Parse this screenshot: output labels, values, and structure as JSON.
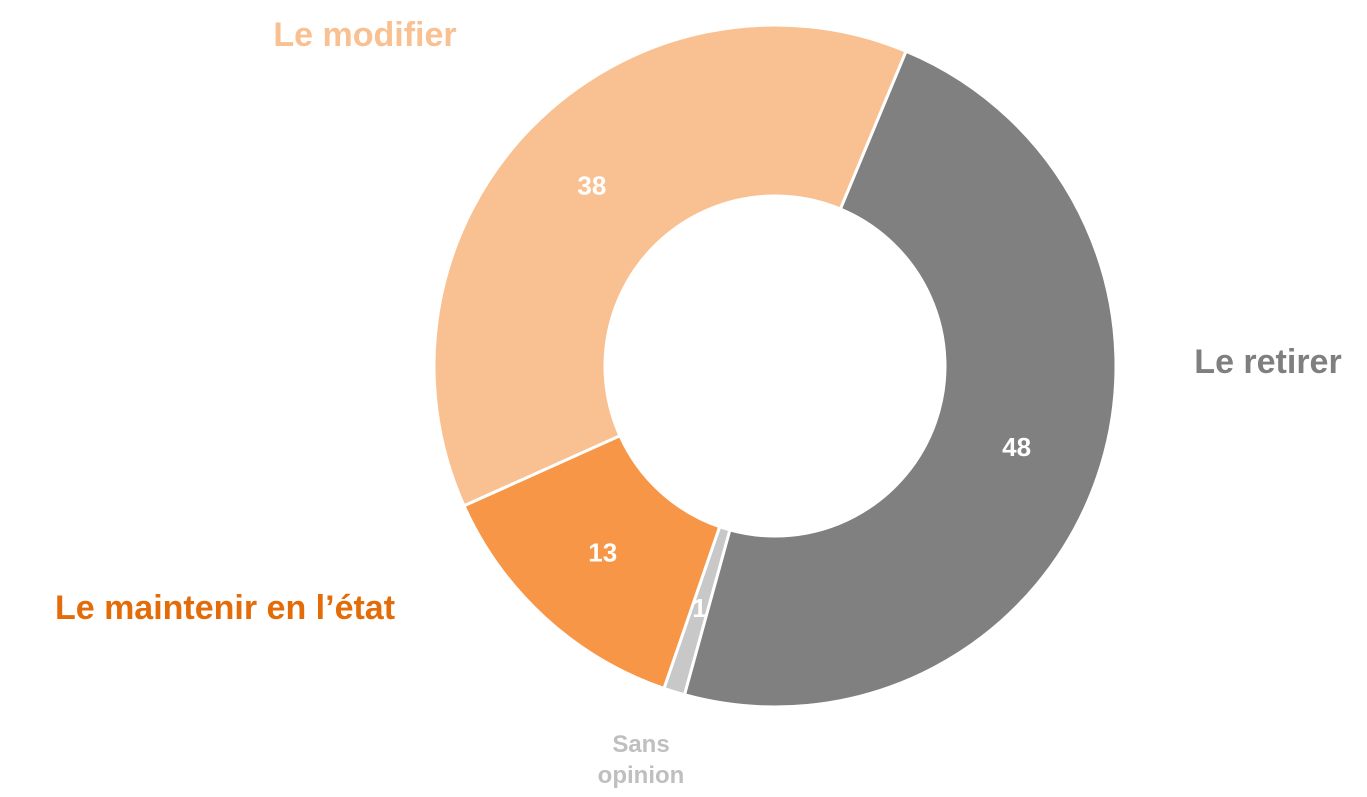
{
  "chart_data": {
    "type": "donut",
    "categories": [
      "Le retirer",
      "Sans opinion",
      "Le maintenir en l’état",
      "Le modifier"
    ],
    "values": [
      48,
      1,
      13,
      38
    ],
    "colors": [
      "#808080",
      "#c8c8c8",
      "#f79646",
      "#f9c191"
    ],
    "label_colors": [
      "#7f7f7f",
      "#bfbfbf",
      "#e36c09",
      "#f9c191"
    ]
  }
}
